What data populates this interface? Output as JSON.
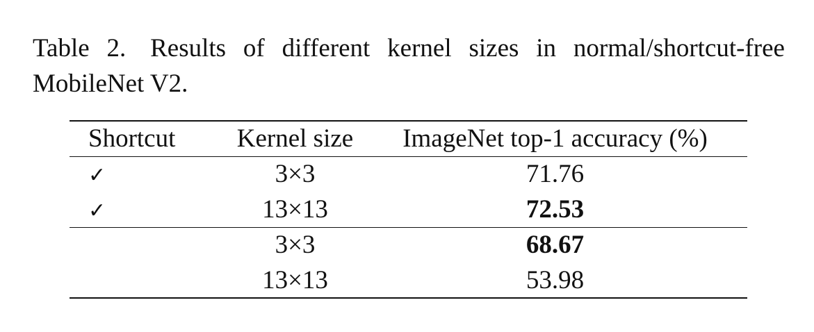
{
  "caption": {
    "label": "Table 2.",
    "text": "Results of different kernel sizes in normal/shortcut-free MobileNet V2."
  },
  "table": {
    "headers": {
      "shortcut": "Shortcut",
      "kernel_size": "Kernel size",
      "accuracy": "ImageNet top-1 accuracy (%)"
    },
    "rows": [
      {
        "shortcut": "✓",
        "kernel_size": "3×3",
        "accuracy": "71.76",
        "bold": false
      },
      {
        "shortcut": "✓",
        "kernel_size": "13×13",
        "accuracy": "72.53",
        "bold": true
      },
      {
        "shortcut": "",
        "kernel_size": "3×3",
        "accuracy": "68.67",
        "bold": true
      },
      {
        "shortcut": "",
        "kernel_size": "13×13",
        "accuracy": "53.98",
        "bold": false
      }
    ]
  }
}
